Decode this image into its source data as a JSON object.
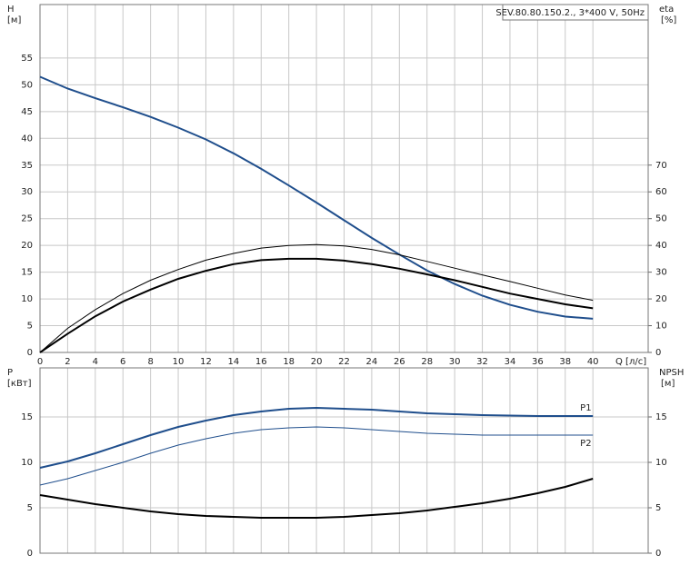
{
  "chart_data": [
    {
      "type": "line",
      "title": "SEV.80.80.150.2., 3*400 V, 50Hz",
      "ylabel": "H",
      "yunit": "[м]",
      "y2label": "eta",
      "y2unit": "[%]",
      "xlabel": "Q [л/с]",
      "x": [
        0,
        2,
        4,
        6,
        8,
        10,
        12,
        14,
        16,
        18,
        20,
        22,
        24,
        26,
        28,
        30,
        32,
        34,
        36,
        38,
        40
      ],
      "xlim": [
        0,
        44
      ],
      "xticks": [
        0,
        2,
        4,
        6,
        8,
        10,
        12,
        14,
        16,
        18,
        20,
        22,
        24,
        26,
        28,
        30,
        32,
        34,
        36,
        38,
        40
      ],
      "ylim": [
        0,
        65
      ],
      "yticks": [
        0,
        5,
        10,
        15,
        20,
        25,
        30,
        35,
        40,
        45,
        50,
        55
      ],
      "y2lim": [
        0,
        130
      ],
      "y2ticks": [
        0,
        10,
        20,
        30,
        40,
        50,
        60,
        70
      ],
      "grid": true,
      "series": [
        {
          "color": "#1f4e8c",
          "width": 2,
          "values": [
            51.5,
            49.3,
            47.5,
            45.8,
            44,
            42,
            39.8,
            37.2,
            34.3,
            31.2,
            28,
            24.7,
            21.4,
            18.3,
            15.3,
            12.8,
            10.6,
            8.9,
            7.6,
            6.7,
            6.3
          ]
        },
        {
          "color": "#000000",
          "width": 1,
          "axis": "y2",
          "values": [
            0,
            9,
            16,
            22,
            27,
            31,
            34.5,
            37,
            39,
            40,
            40.3,
            39.8,
            38.5,
            36.5,
            34,
            31.5,
            29,
            26.5,
            24,
            21.5,
            19.5
          ]
        },
        {
          "color": "#000000",
          "width": 2,
          "axis": "y2",
          "values": [
            0,
            7,
            13.5,
            19,
            23.5,
            27.5,
            30.5,
            33,
            34.5,
            35,
            35,
            34.3,
            33,
            31.3,
            29.2,
            27,
            24.5,
            22,
            20,
            18,
            16.5
          ]
        }
      ]
    },
    {
      "type": "line",
      "ylabel": "P",
      "yunit": "[кВт]",
      "y2label": "NPSH",
      "y2unit": "[м]",
      "x": [
        0,
        2,
        4,
        6,
        8,
        10,
        12,
        14,
        16,
        18,
        20,
        22,
        24,
        26,
        28,
        30,
        32,
        34,
        36,
        38,
        40
      ],
      "xlim": [
        0,
        44
      ],
      "xticks": [
        0,
        2,
        4,
        6,
        8,
        10,
        12,
        14,
        16,
        18,
        20,
        22,
        24,
        26,
        28,
        30,
        32,
        34,
        36,
        38,
        40
      ],
      "ylim": [
        0,
        20.4
      ],
      "yticks": [
        0,
        5,
        10,
        15
      ],
      "y2lim": [
        0,
        20.4
      ],
      "y2ticks": [
        0,
        5,
        10,
        15
      ],
      "grid": true,
      "series": [
        {
          "name": "P1",
          "color": "#1f4e8c",
          "width": 2,
          "values": [
            9.4,
            10.1,
            11,
            12,
            13,
            13.9,
            14.6,
            15.2,
            15.6,
            15.9,
            16,
            15.9,
            15.8,
            15.6,
            15.4,
            15.3,
            15.2,
            15.15,
            15.1,
            15.1,
            15.1
          ]
        },
        {
          "name": "P2",
          "color": "#1f4e8c",
          "width": 1,
          "values": [
            7.5,
            8.2,
            9.1,
            10,
            11,
            11.9,
            12.6,
            13.2,
            13.6,
            13.8,
            13.9,
            13.8,
            13.6,
            13.4,
            13.2,
            13.1,
            13,
            13,
            13,
            13,
            13
          ]
        },
        {
          "color": "#000000",
          "width": 2,
          "axis": "y2",
          "values": [
            6.4,
            5.9,
            5.4,
            5,
            4.6,
            4.3,
            4.1,
            4,
            3.9,
            3.9,
            3.9,
            4,
            4.2,
            4.4,
            4.7,
            5.1,
            5.5,
            6,
            6.6,
            7.3,
            8.2
          ]
        }
      ]
    }
  ]
}
